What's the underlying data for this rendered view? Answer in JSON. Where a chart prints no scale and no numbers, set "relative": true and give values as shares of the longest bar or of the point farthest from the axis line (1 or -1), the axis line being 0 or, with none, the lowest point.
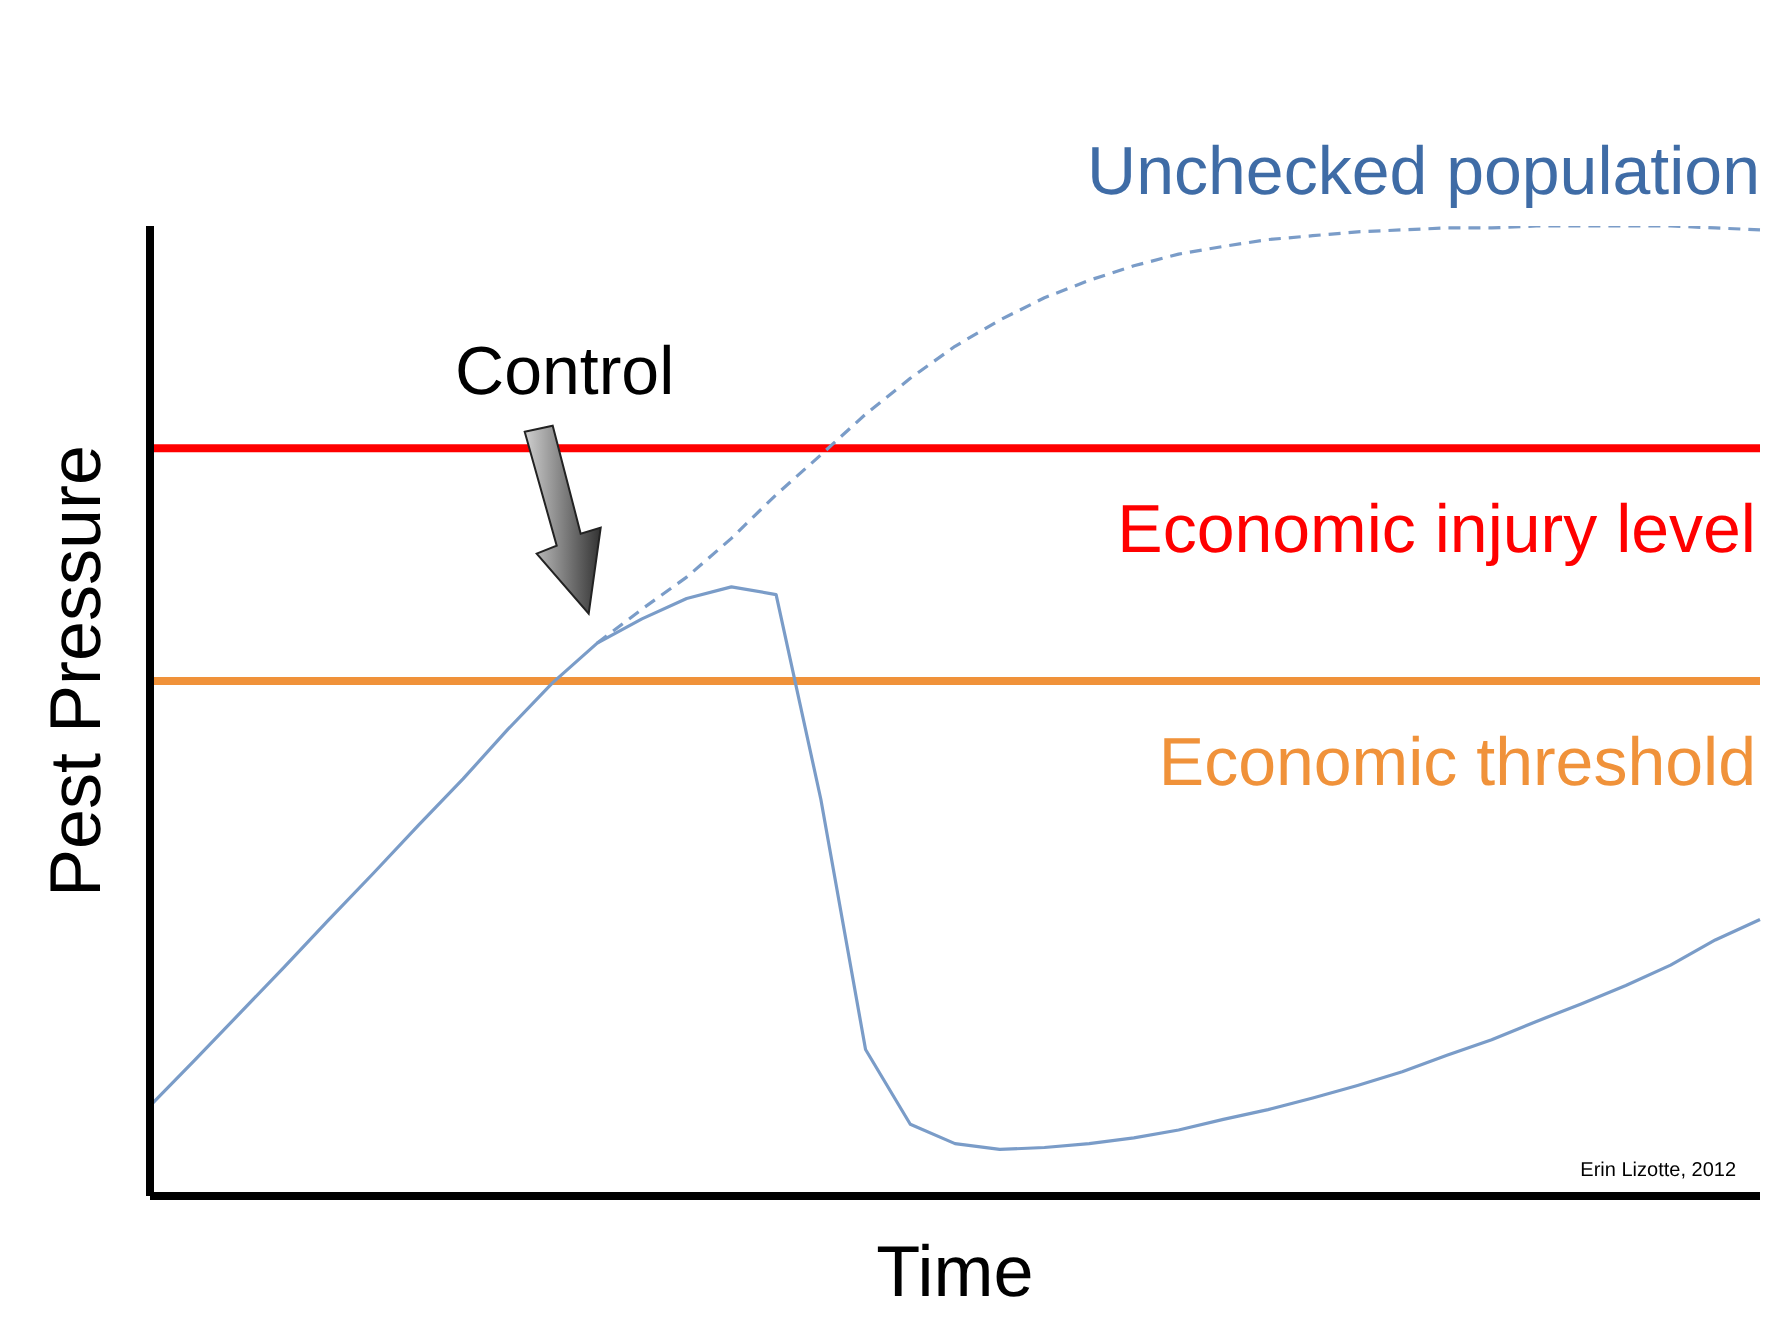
{
  "chart_data": {
    "type": "line",
    "relative": true,
    "xlabel": "Time",
    "ylabel": "Pest Pressure",
    "grid": false,
    "legend": false,
    "marker": "none",
    "categories": [
      null,
      null,
      null,
      null,
      null,
      null,
      null,
      null,
      null,
      null,
      null,
      null,
      null,
      null,
      null,
      null,
      null,
      null,
      null,
      null,
      null,
      null,
      null,
      null,
      null,
      null,
      null,
      null,
      null,
      null,
      null,
      null,
      null,
      null,
      null,
      null,
      null
    ],
    "series": [
      {
        "color": "#7a9cc8",
        "line_style": "solid",
        "values": [
          0.093,
          0.14,
          0.188,
          0.236,
          0.285,
          0.333,
          0.382,
          0.43,
          0.481,
          0.529,
          0.57,
          0.595,
          0.616,
          0.628,
          0.62,
          0.409,
          0.151,
          0.074,
          0.054,
          0.048,
          0.05,
          0.054,
          0.06,
          0.068,
          0.079,
          0.089,
          0.101,
          0.114,
          0.128,
          0.145,
          0.161,
          0.18,
          0.198,
          0.217,
          0.238,
          0.264,
          0.285
        ]
      },
      {
        "name": "Unchecked population",
        "color": "#7a9cc8",
        "line_style": "dashed",
        "values": [
          null,
          null,
          null,
          null,
          null,
          null,
          null,
          null,
          null,
          null,
          0.57,
          0.605,
          0.638,
          0.678,
          0.723,
          0.764,
          0.806,
          0.843,
          0.876,
          0.903,
          0.926,
          0.944,
          0.959,
          0.971,
          0.979,
          0.986,
          0.99,
          0.994,
          0.996,
          0.998,
          0.998,
          1,
          1,
          1,
          1,
          0.998,
          0.996
        ]
      }
    ],
    "ref_lines": [
      {
        "axis": "y",
        "value": 0.771,
        "label": "Economic injury level",
        "color": "#ff0000"
      },
      {
        "axis": "y",
        "value": 0.531,
        "label": "Economic threshold",
        "color": "#f0923a"
      }
    ],
    "annotations": [
      "Control",
      "Erin Lizotte, 2012"
    ]
  }
}
